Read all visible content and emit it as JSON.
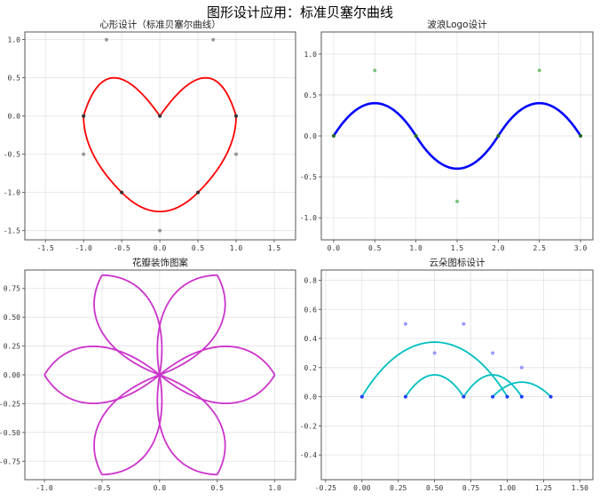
{
  "figure_title": "图形设计应用：标准贝塞尔曲线",
  "chart_data": [
    {
      "type": "line",
      "title": "心形设计（标准贝塞尔曲线）",
      "xlim": [
        -1.77,
        1.78
      ],
      "ylim": [
        -1.62,
        1.1
      ],
      "xticks": [
        "-1.5",
        "-1.0",
        "-0.5",
        "0.0",
        "0.5",
        "1.0",
        "1.5"
      ],
      "yticks": [
        "1.0",
        "0.5",
        "0.0",
        "-0.5",
        "-1.0",
        "-1.5"
      ],
      "grid": true,
      "curve_color": "#ff0000",
      "control_color": "#808080",
      "anchor_color": "#333333",
      "segments": [
        [
          [
            0,
            0
          ],
          [
            0.7,
            1
          ],
          [
            1,
            0
          ]
        ],
        [
          [
            1,
            0
          ],
          [
            1,
            -0.5
          ],
          [
            0.5,
            -1
          ]
        ],
        [
          [
            0.5,
            -1
          ],
          [
            0,
            -1.5
          ],
          [
            -0.5,
            -1
          ]
        ],
        [
          [
            -0.5,
            -1
          ],
          [
            -1,
            -0.5
          ],
          [
            -1,
            0
          ]
        ],
        [
          [
            -1,
            0
          ],
          [
            -0.7,
            1
          ],
          [
            0,
            0
          ]
        ]
      ],
      "anchors": [
        [
          0,
          0
        ],
        [
          1,
          0
        ],
        [
          0.5,
          -1
        ],
        [
          -0.5,
          -1
        ],
        [
          -1,
          0
        ]
      ],
      "controls": [
        [
          0.7,
          1
        ],
        [
          1,
          -0.5
        ],
        [
          0,
          -1.5
        ],
        [
          -1,
          -0.5
        ],
        [
          -0.7,
          1
        ]
      ]
    },
    {
      "type": "line",
      "title": "波浪Logo设计",
      "xlim": [
        -0.15,
        3.15
      ],
      "ylim": [
        -1.27,
        1.27
      ],
      "xticks": [
        "0.0",
        "0.5",
        "1.0",
        "1.5",
        "2.0",
        "2.5",
        "3.0"
      ],
      "yticks": [
        "1.0",
        "0.5",
        "0.0",
        "-0.5",
        "-1.0"
      ],
      "grid": true,
      "curve_color": "#0000ff",
      "control_color": "#5cb85c",
      "anchor_color": "#1e6e1e",
      "segments": [
        [
          [
            0,
            0
          ],
          [
            0.5,
            0.8
          ],
          [
            1,
            0
          ]
        ],
        [
          [
            1,
            0
          ],
          [
            1.5,
            -0.8
          ],
          [
            2,
            0
          ]
        ],
        [
          [
            2,
            0
          ],
          [
            2.5,
            0.8
          ],
          [
            3,
            0
          ]
        ]
      ],
      "anchors": [
        [
          0,
          0
        ],
        [
          1,
          0
        ],
        [
          2,
          0
        ],
        [
          3,
          0
        ]
      ],
      "controls": [
        [
          0.5,
          0.8
        ],
        [
          1.5,
          -0.8
        ],
        [
          2.5,
          0.8
        ]
      ]
    },
    {
      "type": "line",
      "title": "花瓣装饰图案",
      "xlim": [
        -1.17,
        1.18
      ],
      "ylim": [
        -0.91,
        0.91
      ],
      "xticks": [
        "-1.0",
        "-0.5",
        "0.0",
        "0.5",
        "1.0"
      ],
      "yticks": [
        "0.75",
        "0.50",
        "0.25",
        "0.00",
        "-0.25",
        "-0.50",
        "-0.75"
      ],
      "grid": true,
      "curve_color": "#cc33cc",
      "petal_count": 6,
      "petal_segments": [
        [
          [
            0,
            0
          ],
          [
            0.4,
            0.33
          ],
          [
            0.8,
            0.33
          ],
          [
            1,
            0
          ]
        ],
        [
          [
            0,
            0
          ],
          [
            0.4,
            -0.33
          ],
          [
            0.8,
            -0.33
          ],
          [
            1,
            0
          ]
        ]
      ]
    },
    {
      "type": "line",
      "title": "云朵图标设计",
      "xlim": [
        -0.28,
        1.59
      ],
      "ylim": [
        -0.57,
        0.87
      ],
      "xticks": [
        "-0.25",
        "0.00",
        "0.25",
        "0.50",
        "0.75",
        "1.00",
        "1.25",
        "1.50"
      ],
      "yticks": [
        "0.8",
        "0.6",
        "0.4",
        "0.2",
        "0.0",
        "-0.2",
        "-0.4"
      ],
      "grid": true,
      "curve_color": "#00bfbf",
      "control_color": "#7f7fff",
      "anchor_color": "#1f3fff",
      "segments": [
        [
          [
            0,
            0
          ],
          [
            0.3,
            0.5
          ],
          [
            0.7,
            0.5
          ],
          [
            1,
            0
          ]
        ],
        [
          [
            0.3,
            0
          ],
          [
            0.5,
            0.3
          ],
          [
            0.7,
            0
          ]
        ],
        [
          [
            0.7,
            0
          ],
          [
            0.9,
            0.3
          ],
          [
            1.1,
            0
          ]
        ],
        [
          [
            0.9,
            0
          ],
          [
            1.1,
            0.2
          ],
          [
            1.3,
            0
          ]
        ]
      ],
      "anchors": [
        [
          0,
          0
        ],
        [
          1,
          0
        ],
        [
          0.3,
          0
        ],
        [
          0.7,
          0
        ],
        [
          1.1,
          0
        ],
        [
          0.9,
          0
        ],
        [
          1.3,
          0
        ]
      ],
      "controls": [
        [
          0.3,
          0.5
        ],
        [
          0.7,
          0.5
        ],
        [
          0.5,
          0.3
        ],
        [
          0.9,
          0.3
        ],
        [
          1.1,
          0.2
        ]
      ]
    }
  ]
}
